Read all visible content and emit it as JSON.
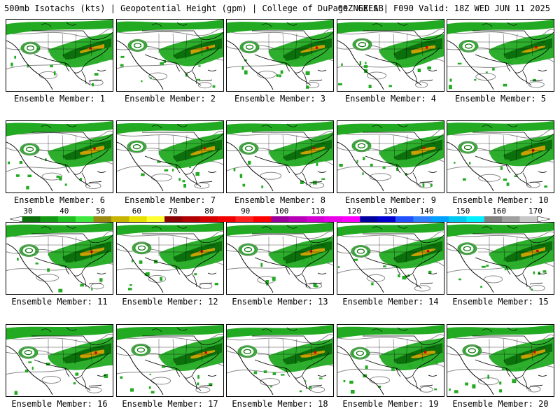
{
  "header": {
    "left": "500mb Isotachs (kts) | Geopotential Height (gpm) | College of DuPage NEXLAB",
    "right": "00Z GEFS | F090 Valid: 18Z WED JUN 11 2025"
  },
  "members": [
    "Ensemble Member: 1",
    "Ensemble Member: 2",
    "Ensemble Member: 3",
    "Ensemble Member: 4",
    "Ensemble Member: 5",
    "Ensemble Member: 6",
    "Ensemble Member: 7",
    "Ensemble Member: 8",
    "Ensemble Member: 9",
    "Ensemble Member: 10",
    "Ensemble Member: 11",
    "Ensemble Member: 12",
    "Ensemble Member: 13",
    "Ensemble Member: 14",
    "Ensemble Member: 15",
    "Ensemble Member: 16",
    "Ensemble Member: 17",
    "Ensemble Member: 18",
    "Ensemble Member: 19",
    "Ensemble Member: 20"
  ],
  "colorbar": {
    "labels": [
      "30",
      "40",
      "50",
      "60",
      "70",
      "80",
      "90",
      "100",
      "110",
      "120",
      "130",
      "140",
      "150",
      "160",
      "170"
    ],
    "colors": [
      "#0a6e0a",
      "#139a13",
      "#20c020",
      "#3ee83e",
      "#9a8a10",
      "#c8b400",
      "#e8e000",
      "#ffff33",
      "#8b0000",
      "#b00000",
      "#d40000",
      "#f00000",
      "#ff2020",
      "#ff0000",
      "#9b009b",
      "#b800b8",
      "#d200d2",
      "#e800e8",
      "#ff00ff",
      "#0000a0",
      "#0000d0",
      "#2050ff",
      "#3080ff",
      "#00a0ff",
      "#00c8f0",
      "#00f0ff",
      "#808080",
      "#a0a0a0",
      "#c8c8c8"
    ]
  },
  "map_colors": {
    "isotach_light": "#22aa22",
    "isotach_dark": "#0b6f0b",
    "isotach_core": "#c8a000",
    "isotach_max": "#d40000",
    "height_contour": "#888888",
    "coastline": "#000000"
  }
}
